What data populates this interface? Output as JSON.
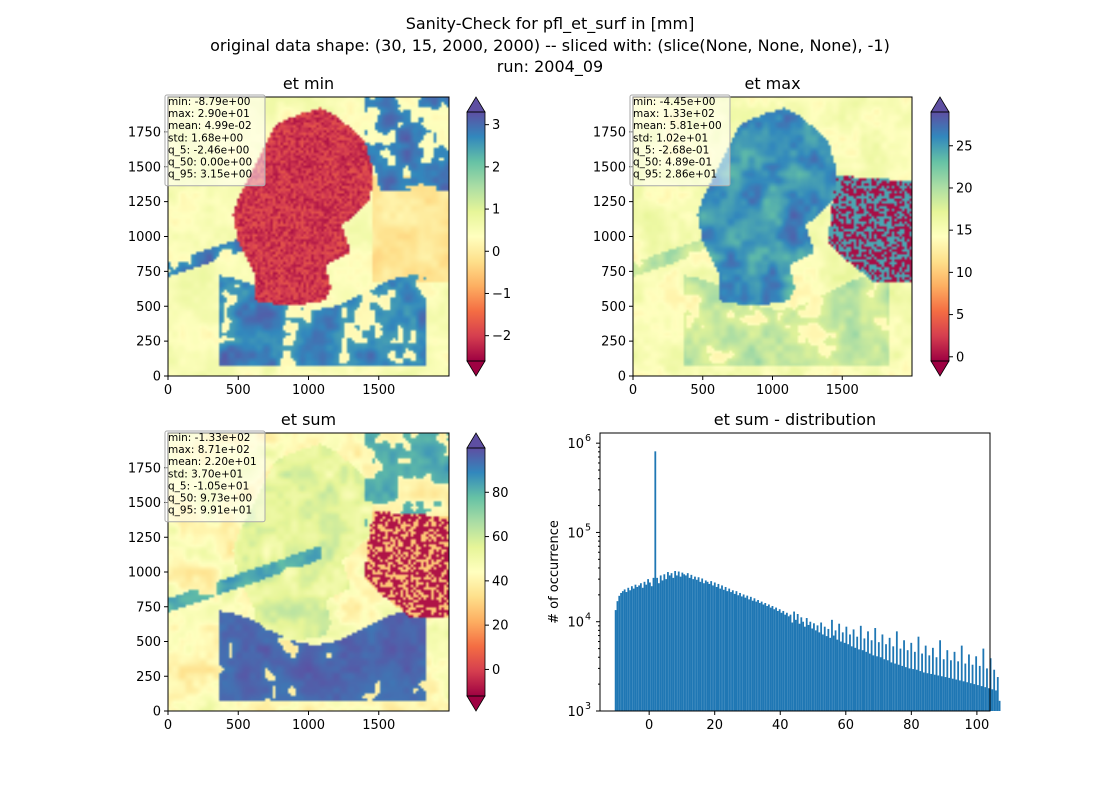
{
  "figure": {
    "suptitle_lines": [
      "Sanity-Check for pfl_et_surf in [mm]",
      "original data shape: (30, 15, 2000, 2000) -- sliced with: (slice(None, None, None), -1)",
      "run: 2004_09"
    ]
  },
  "chart_data": [
    {
      "type": "heatmap",
      "title": "et min",
      "xlim": [
        0,
        2000
      ],
      "ylim": [
        0,
        2000
      ],
      "xticks": [
        "0",
        "500",
        "1000",
        "1500"
      ],
      "yticks": [
        "0",
        "250",
        "500",
        "750",
        "1000",
        "1250",
        "1500",
        "1750"
      ],
      "colormap": "Spectral",
      "colorbar": {
        "range": [
          -2.6,
          3.3
        ],
        "ticks": [
          "3",
          "2",
          "1",
          "0",
          "−1",
          "−2"
        ],
        "tick_values": [
          3,
          2,
          1,
          0,
          -1,
          -2
        ],
        "extend": "both"
      },
      "stats": [
        "min: -8.79e+00",
        "max: 2.90e+01",
        "mean: 4.99e-02",
        "std: 1.68e+00",
        "q_5: -2.46e+00",
        "q_50: 0.00e+00",
        "q_95: 3.15e+00"
      ]
    },
    {
      "type": "heatmap",
      "title": "et max",
      "xlim": [
        0,
        2000
      ],
      "ylim": [
        0,
        2000
      ],
      "xticks": [
        "0",
        "500",
        "1000",
        "1500"
      ],
      "yticks": [
        "0",
        "250",
        "500",
        "750",
        "1000",
        "1250",
        "1500",
        "1750"
      ],
      "colormap": "Spectral",
      "colorbar": {
        "range": [
          -0.5,
          29
        ],
        "ticks": [
          "25",
          "20",
          "15",
          "10",
          "5",
          "0"
        ],
        "tick_values": [
          25,
          20,
          15,
          10,
          5,
          0
        ],
        "extend": "both"
      },
      "stats": [
        "min: -4.45e+00",
        "max: 1.33e+02",
        "mean: 5.81e+00",
        "std: 1.02e+01",
        "q_5: -2.68e-01",
        "q_50: 4.89e-01",
        "q_95: 2.86e+01"
      ]
    },
    {
      "type": "heatmap",
      "title": "et sum",
      "xlim": [
        0,
        2000
      ],
      "ylim": [
        0,
        2000
      ],
      "xticks": [
        "0",
        "500",
        "1000",
        "1500"
      ],
      "yticks": [
        "0",
        "250",
        "500",
        "750",
        "1000",
        "1250",
        "1500",
        "1750"
      ],
      "colormap": "Spectral",
      "colorbar": {
        "range": [
          -12,
          100
        ],
        "ticks": [
          "80",
          "60",
          "40",
          "20",
          "0"
        ],
        "tick_values": [
          80,
          60,
          40,
          20,
          0
        ],
        "extend": "both"
      },
      "stats": [
        "min: -1.33e+02",
        "max: 8.71e+02",
        "mean: 2.20e+01",
        "std: 3.70e+01",
        "q_5: -1.05e+01",
        "q_50: 9.73e+00",
        "q_95: 9.91e+01"
      ]
    },
    {
      "type": "bar",
      "title": "et sum - distribution",
      "ylabel": "# of occurrence",
      "ylog": true,
      "xlim": [
        -15,
        104
      ],
      "ylim": [
        1000,
        1300000
      ],
      "xticks": [
        0,
        20,
        40,
        60,
        80,
        100
      ],
      "ytick_labels": [
        "10",
        "10",
        "10",
        "10"
      ],
      "ytick_exponents": [
        "3",
        "4",
        "5",
        "6"
      ],
      "ytick_values": [
        1000,
        10000,
        100000,
        1000000
      ],
      "bar_color": "#1f77b4",
      "bins": {
        "start": -10.5,
        "width": 0.55
      },
      "values": [
        13500,
        17000,
        19500,
        21000,
        22000,
        23000,
        21500,
        24000,
        22500,
        25000,
        23500,
        26000,
        24500,
        25500,
        27000,
        24000,
        28000,
        26000,
        30000,
        27500,
        25000,
        31000,
        810000,
        31000,
        27000,
        33000,
        29000,
        34000,
        30000,
        36000,
        33000,
        35000,
        31000,
        37000,
        33000,
        36500,
        32000,
        35500,
        34000,
        33000,
        35000,
        31000,
        33500,
        30000,
        32000,
        29500,
        31500,
        28000,
        30500,
        27000,
        29000,
        28000,
        26500,
        28500,
        25500,
        27500,
        24500,
        26500,
        23500,
        25500,
        22800,
        24500,
        22000,
        23500,
        21500,
        22500,
        20500,
        22000,
        19800,
        21000,
        19200,
        20200,
        18600,
        19600,
        17800,
        19000,
        17200,
        18300,
        16800,
        17500,
        16200,
        16800,
        15600,
        16200,
        15000,
        15600,
        14400,
        15000,
        13800,
        14400,
        13200,
        13800,
        12600,
        13200,
        12000,
        12600,
        11500,
        12000,
        9800,
        13000,
        10500,
        12200,
        9500,
        11200,
        10000,
        8800,
        11000,
        9200,
        10000,
        8400,
        9600,
        8000,
        9100,
        7600,
        9800,
        7200,
        8800,
        6900,
        8300,
        6600,
        10500,
        7000,
        8000,
        6300,
        9500,
        6000,
        7600,
        5800,
        8800,
        5600,
        7200,
        5300,
        8200,
        5100,
        6800,
        4900,
        9000,
        4800,
        6500,
        4600,
        7800,
        4400,
        6200,
        4200,
        8500,
        4100,
        5900,
        4000,
        7200,
        3800,
        5600,
        3700,
        6600,
        3500,
        5300,
        3400,
        7800,
        3300,
        5000,
        3200,
        6200,
        3100,
        4800,
        3000,
        5800,
        2950,
        4600,
        2900,
        6800,
        2800,
        4400,
        2700,
        5400,
        2650,
        4200,
        2600,
        5100,
        2550,
        4000,
        2500,
        6200,
        2450,
        3800,
        2400,
        4800,
        2350,
        3700,
        2300,
        4600,
        2250,
        3600,
        2200,
        5400,
        2150,
        3400,
        2100,
        4300,
        2050,
        3300,
        2000,
        4100,
        1950,
        3200,
        1900,
        5000,
        1850,
        3000,
        1800,
        3900,
        1750,
        2900,
        1700,
        2400,
        1300
      ]
    }
  ]
}
